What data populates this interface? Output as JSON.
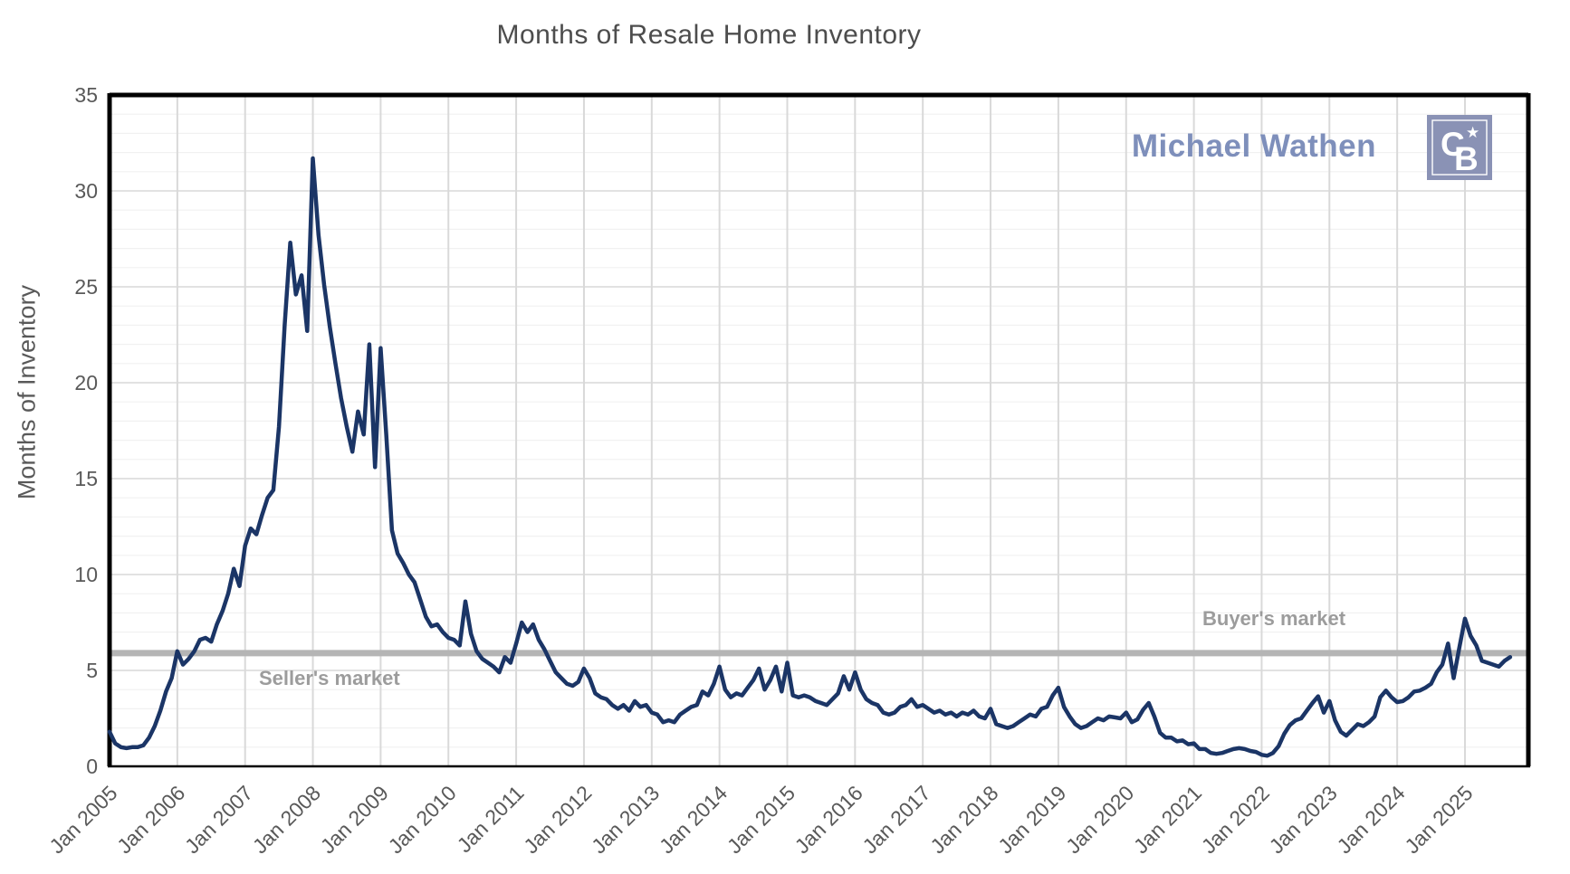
{
  "title": "Months of Resale Home Inventory",
  "y_axis_title": "Months of Inventory",
  "watermark": {
    "name": "Michael Wathen",
    "logo_monogram_c": "C",
    "logo_monogram_b": "B",
    "logo_star": "★"
  },
  "annotations": {
    "sellers": "Seller's market",
    "buyers": "Buyer's market"
  },
  "colors": {
    "line": "#1b3566",
    "threshold_line": "#b5b5b5",
    "grid_major": "#d9d9d9",
    "grid_minor": "#f1f1f1",
    "axis_text": "#595959",
    "annotation_text": "#9c9c9c",
    "watermark_text": "#7e8fbb",
    "logo_bg": "#8a92b5",
    "border": "#000000"
  },
  "chart_data": {
    "type": "line",
    "title": "Months of Resale Home Inventory",
    "ylabel": "Months of Inventory",
    "ylim": [
      0,
      35
    ],
    "y_ticks": [
      0,
      5,
      10,
      15,
      20,
      25,
      30,
      35
    ],
    "x_tick_labels": [
      "Jan 2005",
      "Jan 2006",
      "Jan 2007",
      "Jan 2008",
      "Jan 2009",
      "Jan 2010",
      "Jan 2011",
      "Jan 2012",
      "Jan 2013",
      "Jan 2014",
      "Jan 2015",
      "Jan 2016",
      "Jan 2017",
      "Jan 2018",
      "Jan 2019",
      "Jan 2020",
      "Jan 2021",
      "Jan 2022",
      "Jan 2023",
      "Jan 2024",
      "Jan 2025"
    ],
    "frequency": "monthly",
    "start": "Jan 2005",
    "end": "Sep 2025",
    "grid": true,
    "reference_line": {
      "value": 5.9,
      "label_above": "Buyer's market",
      "label_below": "Seller's market"
    },
    "series": [
      {
        "name": "Months of Inventory",
        "values": [
          1.8,
          1.2,
          1.0,
          0.95,
          1.0,
          1.0,
          1.1,
          1.5,
          2.1,
          2.9,
          3.9,
          4.6,
          6.0,
          5.3,
          5.6,
          6.0,
          6.6,
          6.7,
          6.5,
          7.4,
          8.1,
          9.0,
          10.3,
          9.4,
          11.5,
          12.4,
          12.1,
          13.1,
          14.0,
          14.4,
          17.7,
          23.0,
          27.3,
          24.6,
          25.6,
          22.7,
          31.7,
          27.7,
          25.1,
          22.9,
          21.0,
          19.2,
          17.7,
          16.4,
          18.5,
          17.3,
          22.0,
          15.6,
          21.8,
          17.3,
          12.3,
          11.1,
          10.6,
          10.0,
          9.6,
          8.7,
          7.8,
          7.3,
          7.4,
          7.0,
          6.7,
          6.6,
          6.3,
          8.6,
          6.9,
          6.0,
          5.6,
          5.4,
          5.2,
          4.9,
          5.7,
          5.4,
          6.4,
          7.5,
          7.0,
          7.4,
          6.6,
          6.1,
          5.5,
          4.9,
          4.6,
          4.3,
          4.2,
          4.4,
          5.1,
          4.6,
          3.8,
          3.6,
          3.5,
          3.2,
          3.0,
          3.2,
          2.9,
          3.4,
          3.1,
          3.2,
          2.8,
          2.7,
          2.3,
          2.4,
          2.3,
          2.7,
          2.9,
          3.1,
          3.2,
          3.9,
          3.7,
          4.3,
          5.2,
          4.0,
          3.6,
          3.8,
          3.7,
          4.1,
          4.5,
          5.1,
          4.0,
          4.5,
          5.2,
          3.9,
          5.4,
          3.7,
          3.6,
          3.7,
          3.6,
          3.4,
          3.3,
          3.2,
          3.5,
          3.8,
          4.7,
          4.0,
          4.9,
          4.0,
          3.5,
          3.3,
          3.2,
          2.8,
          2.7,
          2.8,
          3.1,
          3.2,
          3.5,
          3.1,
          3.2,
          3.0,
          2.8,
          2.9,
          2.7,
          2.8,
          2.6,
          2.8,
          2.7,
          2.9,
          2.6,
          2.5,
          3.0,
          2.2,
          2.1,
          2.0,
          2.1,
          2.3,
          2.5,
          2.7,
          2.6,
          3.0,
          3.1,
          3.7,
          4.1,
          3.1,
          2.6,
          2.2,
          2.0,
          2.1,
          2.3,
          2.5,
          2.4,
          2.6,
          2.55,
          2.5,
          2.8,
          2.3,
          2.45,
          2.95,
          3.3,
          2.6,
          1.75,
          1.5,
          1.5,
          1.3,
          1.35,
          1.15,
          1.2,
          0.9,
          0.9,
          0.7,
          0.65,
          0.7,
          0.8,
          0.9,
          0.95,
          0.9,
          0.8,
          0.75,
          0.6,
          0.55,
          0.7,
          1.05,
          1.7,
          2.15,
          2.4,
          2.5,
          2.9,
          3.3,
          3.65,
          2.8,
          3.4,
          2.4,
          1.8,
          1.6,
          1.9,
          2.2,
          2.1,
          2.3,
          2.6,
          3.6,
          3.95,
          3.6,
          3.35,
          3.4,
          3.6,
          3.9,
          3.95,
          4.1,
          4.3,
          4.9,
          5.3,
          6.4,
          4.6,
          6.2,
          7.7,
          6.8,
          6.3,
          5.5,
          5.4,
          5.3,
          5.2,
          5.5,
          5.7
        ]
      }
    ]
  }
}
